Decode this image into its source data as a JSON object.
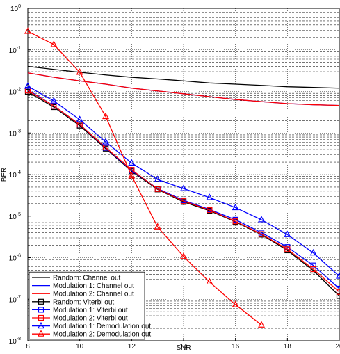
{
  "chart_data": {
    "type": "line",
    "x_label": "SNR",
    "y_label": "BER",
    "y_scale": "log",
    "grid": true,
    "minor_grid": true,
    "legend_position": "lower-left",
    "xlim": [
      8,
      20
    ],
    "xticks": [
      8,
      10,
      12,
      14,
      16,
      18,
      20
    ],
    "ylim": [
      1e-08,
      1
    ],
    "yticks": [
      {
        "value": 1e-08,
        "label": "10",
        "exponent": "-8"
      },
      {
        "value": 1e-07,
        "label": "10",
        "exponent": "-7"
      },
      {
        "value": 1e-06,
        "label": "10",
        "exponent": "-6"
      },
      {
        "value": 1e-05,
        "label": "10",
        "exponent": "-5"
      },
      {
        "value": 0.0001,
        "label": "10",
        "exponent": "-4"
      },
      {
        "value": 0.001,
        "label": "10",
        "exponent": "-3"
      },
      {
        "value": 0.01,
        "label": "10",
        "exponent": "-2"
      },
      {
        "value": 0.1,
        "label": "10",
        "exponent": "-1"
      },
      {
        "value": 1,
        "label": "10",
        "exponent": "0"
      }
    ],
    "x": [
      8,
      9,
      10,
      11,
      12,
      13,
      14,
      15,
      16,
      17,
      18,
      19,
      20
    ],
    "series": [
      {
        "name": "Random: Channel out",
        "color": "#000000",
        "marker": "none",
        "values": [
          0.04,
          0.034,
          0.029,
          0.025,
          0.022,
          0.02,
          0.018,
          0.016,
          0.015,
          0.014,
          0.013,
          0.0125,
          0.012
        ]
      },
      {
        "name": "Modulation 1: Channel out",
        "color": "#0000ff",
        "marker": "none",
        "values": [
          0.028,
          0.022,
          0.018,
          0.015,
          0.012,
          0.0103,
          0.0088,
          0.0075,
          0.0064,
          0.0057,
          0.0051,
          0.0048,
          0.0046
        ]
      },
      {
        "name": "Modulation 2: Channel out",
        "color": "#ff0000",
        "marker": "none",
        "values": [
          0.028,
          0.022,
          0.018,
          0.015,
          0.012,
          0.0103,
          0.0088,
          0.0075,
          0.0064,
          0.0057,
          0.0051,
          0.0048,
          0.0046
        ]
      },
      {
        "name": "Random: Viterbi out",
        "color": "#000000",
        "marker": "square",
        "values": [
          0.0098,
          0.0042,
          0.0015,
          0.00042,
          0.00012,
          4.4e-05,
          2.2e-05,
          1.35e-05,
          7.3e-06,
          3.6e-06,
          1.5e-06,
          4.9e-07,
          1.2e-07
        ]
      },
      {
        "name": "Modulation 1: Viterbi out",
        "color": "#0000ff",
        "marker": "square",
        "values": [
          0.011,
          0.0045,
          0.0016,
          0.00044,
          0.000125,
          4.6e-05,
          2.4e-05,
          1.45e-05,
          8.2e-06,
          4e-06,
          1.8e-06,
          6.5e-07,
          1.8e-07
        ]
      },
      {
        "name": "Modulation 2: Viterbi out",
        "color": "#ff0000",
        "marker": "square",
        "values": [
          0.0105,
          0.0045,
          0.0016,
          0.00045,
          0.00013,
          4.5e-05,
          2.3e-05,
          1.4e-05,
          7.5e-06,
          3.7e-06,
          1.6e-06,
          5.3e-07,
          1.5e-07
        ]
      },
      {
        "name": "Modulation 1: Demodulation out",
        "color": "#0000ff",
        "marker": "triangle",
        "values": [
          0.0134,
          0.0059,
          0.0021,
          0.00061,
          0.00019,
          7.6e-05,
          4.6e-05,
          2.8e-05,
          1.6e-05,
          8.2e-06,
          3.6e-06,
          1.3e-06,
          3.6e-07
        ]
      },
      {
        "name": "Modulation 2: Demodulation out",
        "color": "#ff0000",
        "marker": "triangle",
        "values": [
          0.28,
          0.135,
          0.029,
          0.0025,
          9.3e-05,
          5.5e-06,
          1.07e-06,
          2.6e-07,
          7.4e-08,
          2.4e-08,
          null,
          null,
          null
        ]
      }
    ]
  }
}
